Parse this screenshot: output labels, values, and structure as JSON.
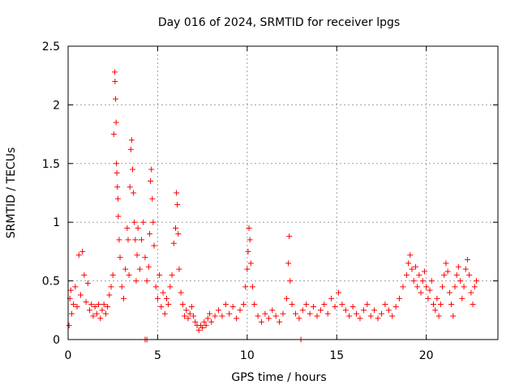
{
  "chart_data": {
    "type": "scatter",
    "title": "Day 016 of 2024, SRMTID for receiver lpgs",
    "xlabel": "GPS time / hours",
    "ylabel": "SRMTID / TECUs",
    "xlim": [
      0,
      24
    ],
    "ylim": [
      0,
      2.5
    ],
    "x_ticks": [
      0,
      5,
      10,
      15,
      20
    ],
    "y_ticks": [
      0,
      0.5,
      1,
      1.5,
      2,
      2.5
    ],
    "x_tick_labels": [
      "0",
      "5",
      "10",
      "15",
      "20"
    ],
    "y_tick_labels": [
      "0",
      "0.5",
      "1",
      "1.5",
      "2",
      "2.5"
    ],
    "grid": true,
    "marker": "+",
    "color": "#ff0000",
    "series": [
      {
        "name": "SRMTID",
        "points": [
          [
            0.05,
            0.12
          ],
          [
            0.1,
            0.35
          ],
          [
            0.15,
            0.42
          ],
          [
            0.2,
            0.22
          ],
          [
            0.3,
            0.3
          ],
          [
            0.4,
            0.45
          ],
          [
            0.5,
            0.28
          ],
          [
            0.6,
            0.72
          ],
          [
            0.7,
            0.38
          ],
          [
            0.8,
            0.75
          ],
          [
            0.9,
            0.55
          ],
          [
            1.0,
            0.32
          ],
          [
            1.1,
            0.48
          ],
          [
            1.2,
            0.25
          ],
          [
            1.3,
            0.3
          ],
          [
            1.4,
            0.2
          ],
          [
            1.5,
            0.28
          ],
          [
            1.6,
            0.22
          ],
          [
            1.7,
            0.3
          ],
          [
            1.8,
            0.18
          ],
          [
            1.9,
            0.25
          ],
          [
            2.0,
            0.3
          ],
          [
            2.1,
            0.22
          ],
          [
            2.2,
            0.28
          ],
          [
            2.3,
            0.38
          ],
          [
            2.4,
            0.45
          ],
          [
            2.5,
            0.55
          ],
          [
            2.55,
            1.75
          ],
          [
            2.6,
            2.28
          ],
          [
            2.62,
            2.2
          ],
          [
            2.65,
            2.05
          ],
          [
            2.68,
            1.85
          ],
          [
            2.7,
            1.5
          ],
          [
            2.72,
            1.42
          ],
          [
            2.75,
            1.3
          ],
          [
            2.78,
            1.2
          ],
          [
            2.8,
            1.05
          ],
          [
            2.85,
            0.85
          ],
          [
            2.9,
            0.7
          ],
          [
            3.0,
            0.45
          ],
          [
            3.1,
            0.35
          ],
          [
            3.2,
            0.6
          ],
          [
            3.3,
            0.95
          ],
          [
            3.35,
            0.85
          ],
          [
            3.4,
            0.55
          ],
          [
            3.45,
            1.3
          ],
          [
            3.5,
            1.62
          ],
          [
            3.55,
            1.7
          ],
          [
            3.6,
            1.45
          ],
          [
            3.65,
            1.25
          ],
          [
            3.7,
            1.0
          ],
          [
            3.75,
            0.85
          ],
          [
            3.8,
            0.5
          ],
          [
            3.85,
            0.72
          ],
          [
            3.9,
            0.95
          ],
          [
            4.0,
            0.6
          ],
          [
            4.1,
            0.85
          ],
          [
            4.2,
            1.0
          ],
          [
            4.3,
            0.7
          ],
          [
            4.4,
            0.5
          ],
          [
            4.5,
            0.62
          ],
          [
            4.55,
            0.9
          ],
          [
            4.6,
            1.35
          ],
          [
            4.65,
            1.45
          ],
          [
            4.7,
            1.2
          ],
          [
            4.75,
            1.0
          ],
          [
            4.8,
            0.8
          ],
          [
            4.9,
            0.45
          ],
          [
            5.0,
            0.35
          ],
          [
            5.1,
            0.55
          ],
          [
            5.2,
            0.28
          ],
          [
            5.3,
            0.4
          ],
          [
            5.4,
            0.22
          ],
          [
            5.5,
            0.35
          ],
          [
            5.6,
            0.3
          ],
          [
            5.7,
            0.45
          ],
          [
            5.8,
            0.55
          ],
          [
            5.9,
            0.82
          ],
          [
            6.0,
            0.95
          ],
          [
            6.05,
            1.25
          ],
          [
            6.1,
            1.15
          ],
          [
            6.15,
            0.9
          ],
          [
            6.2,
            0.6
          ],
          [
            6.3,
            0.4
          ],
          [
            6.4,
            0.3
          ],
          [
            6.5,
            0.2
          ],
          [
            6.6,
            0.25
          ],
          [
            6.7,
            0.18
          ],
          [
            6.8,
            0.22
          ],
          [
            6.9,
            0.28
          ],
          [
            7.0,
            0.2
          ],
          [
            7.1,
            0.15
          ],
          [
            7.2,
            0.12
          ],
          [
            7.3,
            0.08
          ],
          [
            7.4,
            0.12
          ],
          [
            7.5,
            0.1
          ],
          [
            7.6,
            0.15
          ],
          [
            7.7,
            0.12
          ],
          [
            7.8,
            0.18
          ],
          [
            7.9,
            0.22
          ],
          [
            8.0,
            0.15
          ],
          [
            8.2,
            0.2
          ],
          [
            8.4,
            0.25
          ],
          [
            8.6,
            0.2
          ],
          [
            8.8,
            0.3
          ],
          [
            9.0,
            0.22
          ],
          [
            9.2,
            0.28
          ],
          [
            9.4,
            0.18
          ],
          [
            9.6,
            0.25
          ],
          [
            9.8,
            0.3
          ],
          [
            9.9,
            0.45
          ],
          [
            10.0,
            0.6
          ],
          [
            10.05,
            0.75
          ],
          [
            10.1,
            0.95
          ],
          [
            10.15,
            0.85
          ],
          [
            10.2,
            0.65
          ],
          [
            10.3,
            0.45
          ],
          [
            10.4,
            0.3
          ],
          [
            10.6,
            0.2
          ],
          [
            10.8,
            0.15
          ],
          [
            11.0,
            0.22
          ],
          [
            11.2,
            0.18
          ],
          [
            11.4,
            0.25
          ],
          [
            11.6,
            0.2
          ],
          [
            11.8,
            0.15
          ],
          [
            12.0,
            0.22
          ],
          [
            12.2,
            0.35
          ],
          [
            12.3,
            0.65
          ],
          [
            12.35,
            0.88
          ],
          [
            12.4,
            0.5
          ],
          [
            12.5,
            0.3
          ],
          [
            12.7,
            0.22
          ],
          [
            12.9,
            0.18
          ],
          [
            13.1,
            0.25
          ],
          [
            13.3,
            0.3
          ],
          [
            13.5,
            0.22
          ],
          [
            13.7,
            0.28
          ],
          [
            13.9,
            0.2
          ],
          [
            14.1,
            0.25
          ],
          [
            14.3,
            0.3
          ],
          [
            14.5,
            0.22
          ],
          [
            14.7,
            0.35
          ],
          [
            14.9,
            0.28
          ],
          [
            15.1,
            0.4
          ],
          [
            15.3,
            0.3
          ],
          [
            15.5,
            0.25
          ],
          [
            15.7,
            0.2
          ],
          [
            15.9,
            0.28
          ],
          [
            16.1,
            0.22
          ],
          [
            16.3,
            0.18
          ],
          [
            16.5,
            0.25
          ],
          [
            16.7,
            0.3
          ],
          [
            16.9,
            0.2
          ],
          [
            17.1,
            0.25
          ],
          [
            17.3,
            0.18
          ],
          [
            17.5,
            0.22
          ],
          [
            17.7,
            0.3
          ],
          [
            17.9,
            0.25
          ],
          [
            18.1,
            0.2
          ],
          [
            18.3,
            0.28
          ],
          [
            18.5,
            0.35
          ],
          [
            18.7,
            0.45
          ],
          [
            18.9,
            0.55
          ],
          [
            19.0,
            0.65
          ],
          [
            19.1,
            0.72
          ],
          [
            19.2,
            0.6
          ],
          [
            19.3,
            0.5
          ],
          [
            19.4,
            0.62
          ],
          [
            19.5,
            0.45
          ],
          [
            19.6,
            0.55
          ],
          [
            19.7,
            0.4
          ],
          [
            19.8,
            0.5
          ],
          [
            19.9,
            0.58
          ],
          [
            20.0,
            0.45
          ],
          [
            20.1,
            0.35
          ],
          [
            20.2,
            0.42
          ],
          [
            20.3,
            0.5
          ],
          [
            20.4,
            0.3
          ],
          [
            20.5,
            0.25
          ],
          [
            20.6,
            0.35
          ],
          [
            20.7,
            0.2
          ],
          [
            20.8,
            0.3
          ],
          [
            20.9,
            0.45
          ],
          [
            21.0,
            0.55
          ],
          [
            21.1,
            0.65
          ],
          [
            21.2,
            0.58
          ],
          [
            21.3,
            0.4
          ],
          [
            21.4,
            0.3
          ],
          [
            21.5,
            0.2
          ],
          [
            21.6,
            0.45
          ],
          [
            21.7,
            0.55
          ],
          [
            21.8,
            0.62
          ],
          [
            21.9,
            0.5
          ],
          [
            22.0,
            0.35
          ],
          [
            22.1,
            0.45
          ],
          [
            22.2,
            0.6
          ],
          [
            22.3,
            0.68
          ],
          [
            22.4,
            0.55
          ],
          [
            22.5,
            0.4
          ],
          [
            22.6,
            0.3
          ],
          [
            22.7,
            0.45
          ],
          [
            22.8,
            0.5
          ]
        ]
      }
    ],
    "zero_points": [
      [
        4.3,
        0.0
      ],
      [
        4.4,
        0.0
      ],
      [
        13.0,
        0.0
      ]
    ]
  }
}
